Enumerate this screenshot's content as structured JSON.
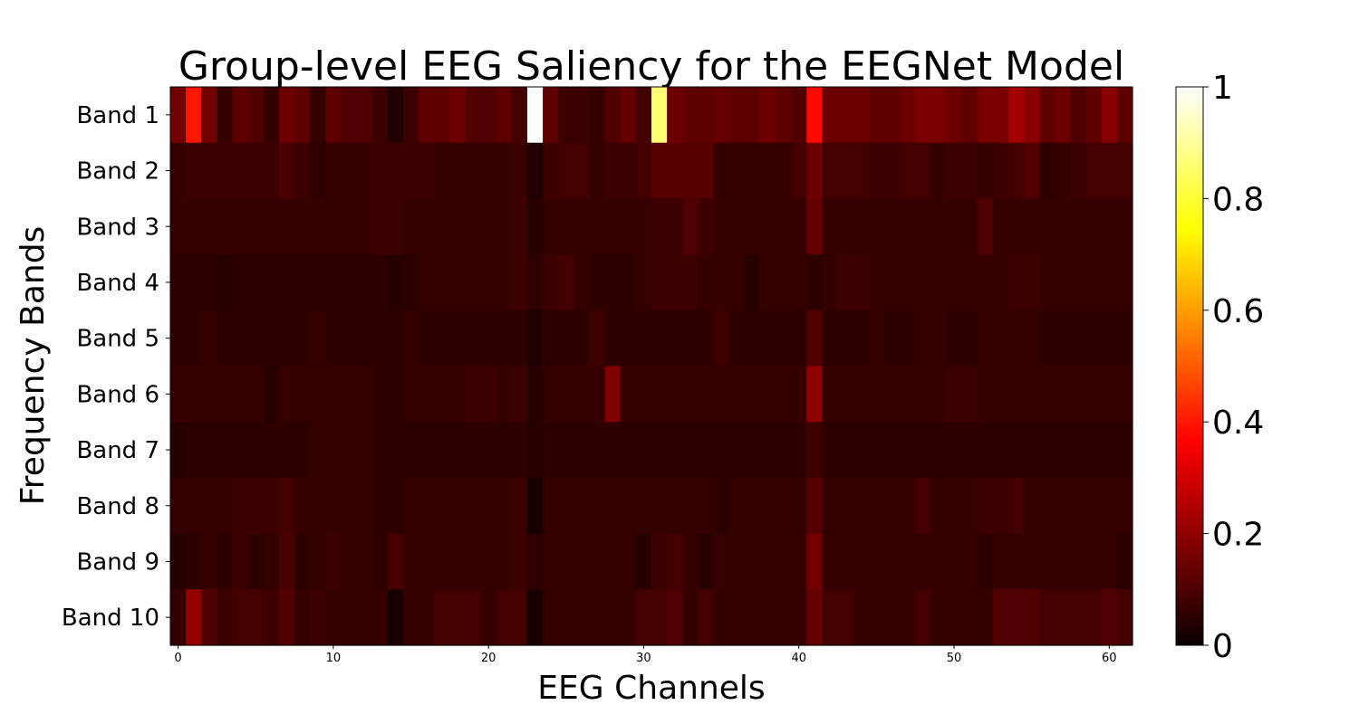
{
  "chart_data": {
    "type": "heatmap",
    "title": "Group-level EEG Saliency for the EEGNet Model",
    "xlabel": "EEG Channels",
    "ylabel": "Frequency Bands",
    "rows": [
      "Band 1",
      "Band 2",
      "Band 3",
      "Band 4",
      "Band 5",
      "Band 6",
      "Band 7",
      "Band 8",
      "Band 9",
      "Band 10"
    ],
    "n_channels": 62,
    "x_ticks": [
      0,
      10,
      20,
      30,
      40,
      50,
      60
    ],
    "colormap": "hot",
    "colorbar": {
      "range": [
        0,
        1
      ],
      "ticks": [
        0,
        0.2,
        0.4,
        0.6,
        0.8,
        1
      ],
      "tick_labels": [
        "0",
        "0.2",
        "0.4",
        "0.6",
        "0.8",
        "1"
      ]
    },
    "values": [
      [
        0.15,
        0.4,
        0.15,
        0.06,
        0.12,
        0.1,
        0.06,
        0.14,
        0.12,
        0.06,
        0.12,
        0.1,
        0.1,
        0.07,
        0.03,
        0.07,
        0.12,
        0.12,
        0.14,
        0.1,
        0.1,
        0.12,
        0.08,
        1.0,
        0.12,
        0.07,
        0.07,
        0.06,
        0.1,
        0.13,
        0.08,
        0.86,
        0.14,
        0.12,
        0.12,
        0.13,
        0.12,
        0.12,
        0.14,
        0.12,
        0.1,
        0.38,
        0.14,
        0.14,
        0.14,
        0.12,
        0.12,
        0.14,
        0.16,
        0.16,
        0.14,
        0.12,
        0.16,
        0.16,
        0.22,
        0.18,
        0.12,
        0.14,
        0.1,
        0.12,
        0.18,
        0.12
      ],
      [
        0.06,
        0.07,
        0.07,
        0.07,
        0.07,
        0.07,
        0.07,
        0.09,
        0.07,
        0.05,
        0.06,
        0.06,
        0.06,
        0.07,
        0.07,
        0.07,
        0.07,
        0.06,
        0.06,
        0.06,
        0.06,
        0.06,
        0.07,
        0.03,
        0.07,
        0.08,
        0.08,
        0.06,
        0.07,
        0.07,
        0.08,
        0.11,
        0.11,
        0.11,
        0.11,
        0.06,
        0.06,
        0.06,
        0.06,
        0.06,
        0.08,
        0.14,
        0.08,
        0.08,
        0.08,
        0.07,
        0.07,
        0.08,
        0.08,
        0.06,
        0.07,
        0.07,
        0.06,
        0.07,
        0.08,
        0.1,
        0.05,
        0.06,
        0.07,
        0.08,
        0.08,
        0.08
      ],
      [
        0.06,
        0.06,
        0.06,
        0.06,
        0.06,
        0.06,
        0.06,
        0.06,
        0.06,
        0.06,
        0.06,
        0.06,
        0.06,
        0.07,
        0.07,
        0.06,
        0.06,
        0.06,
        0.06,
        0.06,
        0.06,
        0.06,
        0.07,
        0.04,
        0.06,
        0.06,
        0.06,
        0.06,
        0.06,
        0.06,
        0.06,
        0.07,
        0.07,
        0.1,
        0.07,
        0.06,
        0.06,
        0.06,
        0.06,
        0.06,
        0.06,
        0.13,
        0.06,
        0.06,
        0.06,
        0.06,
        0.06,
        0.06,
        0.06,
        0.06,
        0.06,
        0.06,
        0.1,
        0.06,
        0.06,
        0.06,
        0.06,
        0.06,
        0.06,
        0.06,
        0.06,
        0.06
      ],
      [
        0.05,
        0.05,
        0.05,
        0.04,
        0.05,
        0.05,
        0.05,
        0.05,
        0.05,
        0.05,
        0.05,
        0.05,
        0.05,
        0.05,
        0.04,
        0.05,
        0.06,
        0.06,
        0.06,
        0.06,
        0.06,
        0.06,
        0.07,
        0.05,
        0.07,
        0.08,
        0.06,
        0.05,
        0.05,
        0.05,
        0.06,
        0.07,
        0.07,
        0.07,
        0.06,
        0.06,
        0.06,
        0.04,
        0.06,
        0.06,
        0.06,
        0.05,
        0.06,
        0.07,
        0.07,
        0.06,
        0.06,
        0.06,
        0.06,
        0.06,
        0.06,
        0.06,
        0.06,
        0.06,
        0.07,
        0.07,
        0.06,
        0.06,
        0.06,
        0.06,
        0.06,
        0.06
      ],
      [
        0.05,
        0.05,
        0.06,
        0.05,
        0.05,
        0.05,
        0.05,
        0.05,
        0.05,
        0.06,
        0.05,
        0.05,
        0.05,
        0.05,
        0.05,
        0.06,
        0.05,
        0.05,
        0.05,
        0.05,
        0.05,
        0.05,
        0.05,
        0.03,
        0.05,
        0.05,
        0.05,
        0.07,
        0.05,
        0.05,
        0.05,
        0.05,
        0.05,
        0.05,
        0.05,
        0.07,
        0.05,
        0.05,
        0.05,
        0.05,
        0.05,
        0.1,
        0.05,
        0.05,
        0.05,
        0.06,
        0.05,
        0.05,
        0.06,
        0.06,
        0.05,
        0.05,
        0.06,
        0.06,
        0.06,
        0.06,
        0.05,
        0.05,
        0.05,
        0.05,
        0.05,
        0.05
      ],
      [
        0.06,
        0.06,
        0.06,
        0.06,
        0.06,
        0.06,
        0.04,
        0.06,
        0.06,
        0.06,
        0.06,
        0.06,
        0.06,
        0.05,
        0.05,
        0.06,
        0.06,
        0.06,
        0.06,
        0.07,
        0.07,
        0.06,
        0.07,
        0.04,
        0.06,
        0.06,
        0.06,
        0.06,
        0.17,
        0.06,
        0.06,
        0.06,
        0.06,
        0.06,
        0.06,
        0.06,
        0.06,
        0.06,
        0.06,
        0.06,
        0.06,
        0.19,
        0.06,
        0.06,
        0.06,
        0.06,
        0.06,
        0.06,
        0.06,
        0.06,
        0.07,
        0.07,
        0.06,
        0.06,
        0.06,
        0.06,
        0.06,
        0.06,
        0.06,
        0.06,
        0.06,
        0.06
      ],
      [
        0.04,
        0.05,
        0.05,
        0.05,
        0.05,
        0.05,
        0.05,
        0.05,
        0.05,
        0.06,
        0.06,
        0.06,
        0.06,
        0.05,
        0.05,
        0.05,
        0.05,
        0.05,
        0.05,
        0.05,
        0.05,
        0.05,
        0.05,
        0.04,
        0.05,
        0.05,
        0.05,
        0.05,
        0.05,
        0.05,
        0.05,
        0.05,
        0.05,
        0.05,
        0.05,
        0.05,
        0.05,
        0.05,
        0.05,
        0.05,
        0.05,
        0.07,
        0.05,
        0.05,
        0.05,
        0.05,
        0.05,
        0.05,
        0.05,
        0.05,
        0.05,
        0.05,
        0.05,
        0.05,
        0.05,
        0.05,
        0.05,
        0.05,
        0.05,
        0.05,
        0.05,
        0.05
      ],
      [
        0.06,
        0.06,
        0.06,
        0.06,
        0.07,
        0.07,
        0.07,
        0.08,
        0.06,
        0.06,
        0.06,
        0.06,
        0.06,
        0.05,
        0.05,
        0.06,
        0.06,
        0.06,
        0.06,
        0.06,
        0.06,
        0.06,
        0.07,
        0.02,
        0.06,
        0.06,
        0.06,
        0.06,
        0.06,
        0.06,
        0.06,
        0.06,
        0.06,
        0.06,
        0.06,
        0.05,
        0.06,
        0.06,
        0.06,
        0.06,
        0.06,
        0.11,
        0.06,
        0.06,
        0.06,
        0.06,
        0.06,
        0.06,
        0.08,
        0.06,
        0.06,
        0.06,
        0.07,
        0.07,
        0.08,
        0.06,
        0.06,
        0.06,
        0.06,
        0.06,
        0.06,
        0.06
      ],
      [
        0.04,
        0.05,
        0.06,
        0.05,
        0.07,
        0.05,
        0.06,
        0.09,
        0.05,
        0.06,
        0.07,
        0.06,
        0.06,
        0.05,
        0.09,
        0.06,
        0.06,
        0.06,
        0.06,
        0.06,
        0.06,
        0.06,
        0.07,
        0.05,
        0.06,
        0.06,
        0.06,
        0.06,
        0.06,
        0.06,
        0.04,
        0.07,
        0.08,
        0.06,
        0.04,
        0.06,
        0.06,
        0.06,
        0.06,
        0.06,
        0.06,
        0.15,
        0.06,
        0.06,
        0.06,
        0.06,
        0.06,
        0.06,
        0.06,
        0.06,
        0.06,
        0.06,
        0.05,
        0.06,
        0.06,
        0.06,
        0.06,
        0.06,
        0.06,
        0.06,
        0.06,
        0.05
      ],
      [
        0.06,
        0.2,
        0.1,
        0.07,
        0.08,
        0.08,
        0.07,
        0.1,
        0.06,
        0.07,
        0.06,
        0.06,
        0.06,
        0.06,
        0.02,
        0.06,
        0.06,
        0.08,
        0.08,
        0.08,
        0.06,
        0.08,
        0.08,
        0.02,
        0.06,
        0.06,
        0.06,
        0.06,
        0.06,
        0.06,
        0.08,
        0.08,
        0.1,
        0.06,
        0.08,
        0.06,
        0.06,
        0.06,
        0.06,
        0.06,
        0.06,
        0.13,
        0.08,
        0.08,
        0.06,
        0.06,
        0.06,
        0.06,
        0.08,
        0.06,
        0.06,
        0.06,
        0.06,
        0.1,
        0.1,
        0.1,
        0.08,
        0.08,
        0.08,
        0.08,
        0.1,
        0.08
      ]
    ]
  }
}
